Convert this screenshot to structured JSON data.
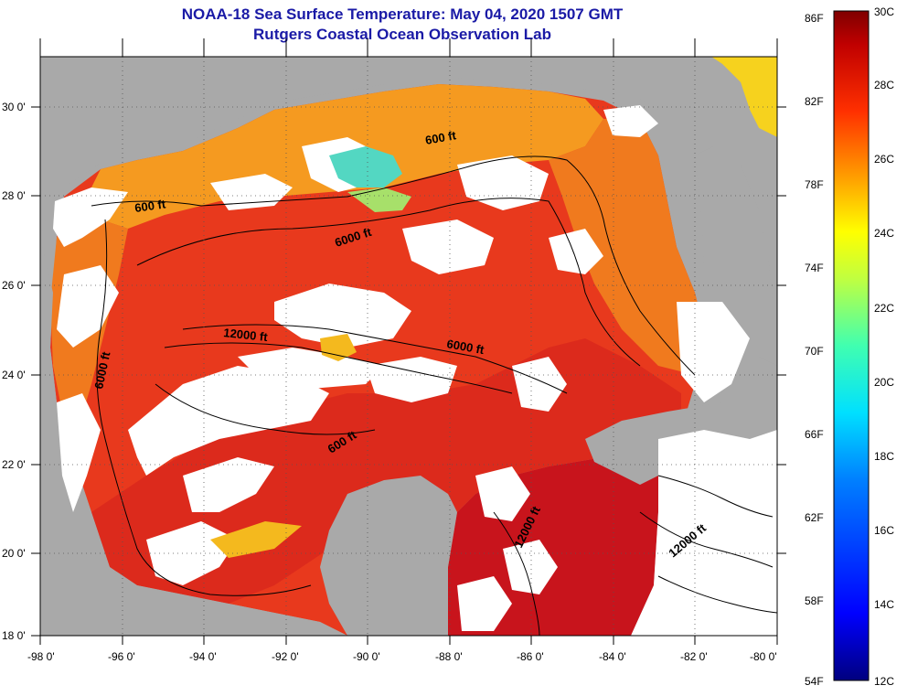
{
  "titles": {
    "line1": "NOAA-18 Sea Surface Temperature:  May 04, 2020 1507 GMT",
    "line2": "Rutgers Coastal Ocean Observation Lab"
  },
  "map": {
    "lon_range": [
      -98,
      -80
    ],
    "lat_range": [
      18,
      31
    ],
    "lon_ticks": [
      "-98 0'",
      "-96 0'",
      "-94 0'",
      "-92 0'",
      "-90 0'",
      "-88 0'",
      "-86 0'",
      "-84 0'",
      "-82 0'",
      "-80 0'"
    ],
    "lat_ticks": [
      "18 0'",
      "20 0'",
      "22 0'",
      "24 0'",
      "26 0'",
      "28 0'",
      "30 0'"
    ],
    "contour_labels": [
      "600 ft",
      "600 ft",
      "6000 ft",
      "6000 ft",
      "12000 ft",
      "6000 ft",
      "600 ft",
      "12000 ft",
      "12000 ft"
    ],
    "colors": {
      "land": "#a9a9a9",
      "cloud": "#ffffff",
      "sea_warm": "#e8341c",
      "sea_hot": "#c8141c"
    }
  },
  "colorbar": {
    "fahrenheit": [
      "86F",
      "82F",
      "78F",
      "74F",
      "70F",
      "66F",
      "62F",
      "58F",
      "54F"
    ],
    "celsius": [
      "30C",
      "28C",
      "26C",
      "24C",
      "22C",
      "20C",
      "18C",
      "16C",
      "14C",
      "12C"
    ],
    "range_c": [
      12,
      30
    ]
  }
}
